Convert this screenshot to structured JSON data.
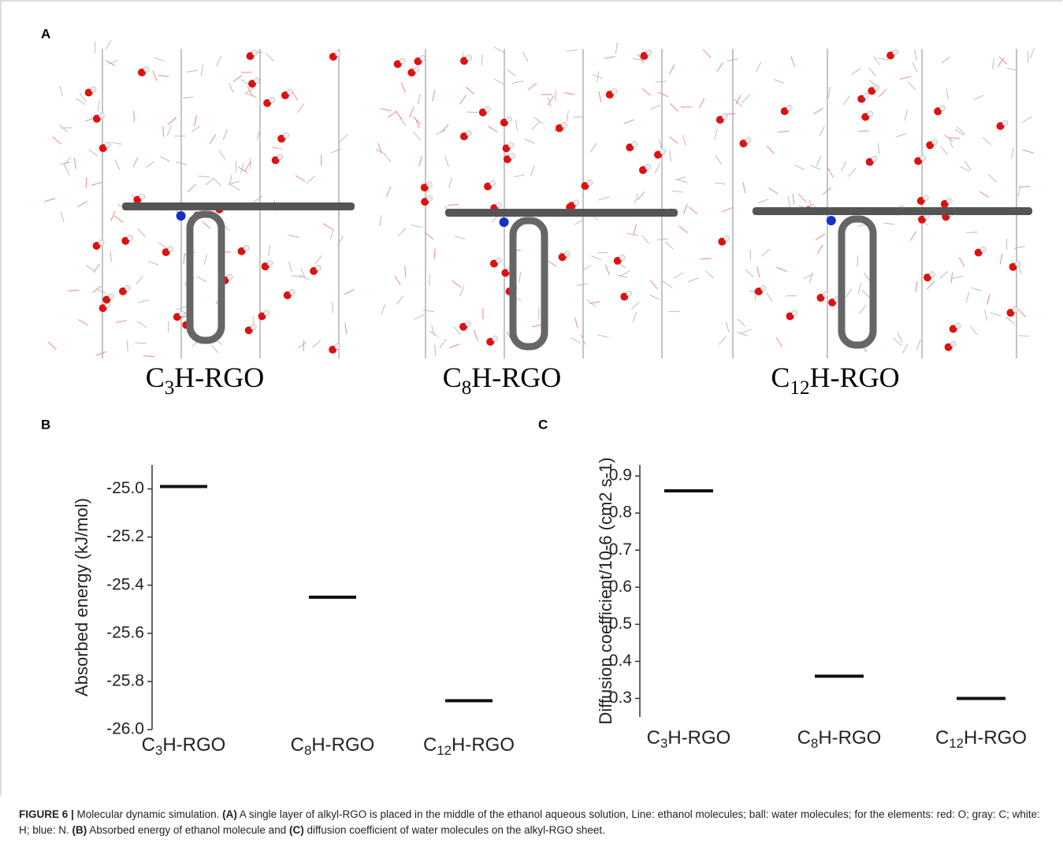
{
  "panel_labels": [
    "A",
    "B",
    "C"
  ],
  "panel_a": {
    "labels": [
      "C3H-RGO",
      "C8H-RGO",
      "C12H-RGO"
    ]
  },
  "chart_data": [
    {
      "type": "bar",
      "ylabel": "Absorbed energy (kJ/mol)",
      "categories": [
        "C3H-RGO",
        "C8H-RGO",
        "C12H-RGO"
      ],
      "values": [
        -24.99,
        -25.45,
        -25.88
      ],
      "color": "#111111",
      "ylim": [
        -26.0,
        -24.9
      ],
      "yticks": [
        {
          "value": -26.0,
          "label": "-26.0"
        },
        -25.8,
        -25.6,
        -25.4,
        -25.2,
        {
          "value": -25.0,
          "label": "-25.0"
        }
      ]
    },
    {
      "type": "bar",
      "ylabel": "Diffusion coefficient/10-6 (cm2 s-1)",
      "categories": [
        "C3H-RGO",
        "C8H-RGO",
        "C12H-RGO"
      ],
      "values": [
        0.86,
        0.36,
        0.3
      ],
      "color": "#111111",
      "ylim": [
        0.25,
        0.93
      ],
      "yticks": [
        0.3,
        0.4,
        0.5,
        0.6,
        0.7,
        0.8,
        0.9
      ]
    }
  ],
  "caption": {
    "label": "FIGURE 6 |",
    "parts": [
      " Molecular dynamic simulation. ",
      "(A)",
      " A single layer of alkyl-RGO is placed in the middle of the ethanol aqueous solution, Line: ethanol molecules; ball: water molecules; for the elements: red: O; gray: C; white: H; blue: N. ",
      "(B)",
      " Absorbed energy of ethanol molecule and ",
      "(C)",
      " diffusion coefficient of water molecules on the alkyl-RGO sheet."
    ]
  }
}
